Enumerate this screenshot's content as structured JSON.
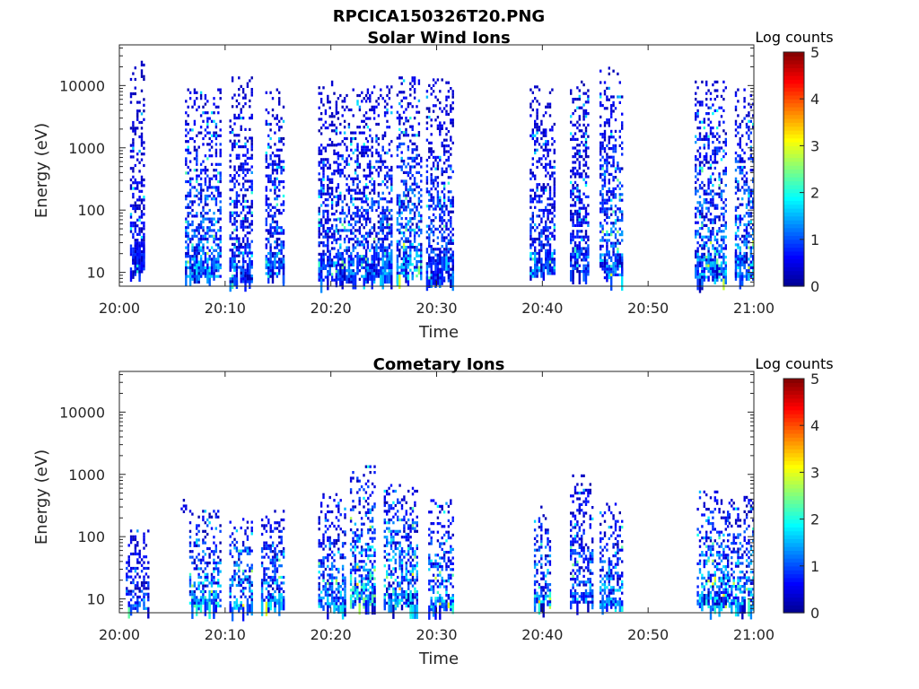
{
  "figure": {
    "filename": "RPCICA150326T20.PNG"
  },
  "palette": {
    "background": "#ffffff",
    "axis": "#262626",
    "colormap": [
      "#00008f",
      "#0000ff",
      "#0080ff",
      "#00ffff",
      "#80ff80",
      "#ffff00",
      "#ff8000",
      "#ff0000",
      "#800000"
    ]
  },
  "chart_data": [
    {
      "type": "heatmap",
      "title": "Solar Wind Ions",
      "xlabel": "Time",
      "ylabel": "Energy (eV)",
      "x_ticks": [
        "20:00",
        "20:10",
        "20:20",
        "20:30",
        "20:40",
        "20:50",
        "21:00"
      ],
      "x_range_minutes": [
        0,
        60
      ],
      "y_scale": "log",
      "y_ticks": [
        "10",
        "100",
        "1000",
        "10000"
      ],
      "ylim": [
        6,
        45000
      ],
      "colorbar": {
        "label": "Log counts",
        "range": [
          0,
          5
        ],
        "ticks": [
          "0",
          "1",
          "2",
          "3",
          "4",
          "5"
        ]
      },
      "minor_ticks": true,
      "grid": false,
      "bursts": [
        {
          "t": [
            1.0,
            2.4
          ],
          "e": [
            10,
            25000
          ],
          "level": 0.7
        },
        {
          "t": [
            6.2,
            9.6
          ],
          "e": [
            8,
            9000
          ],
          "level": 1.4
        },
        {
          "t": [
            10.4,
            12.6
          ],
          "e": [
            7,
            14000
          ],
          "level": 1.0
        },
        {
          "t": [
            13.8,
            15.6
          ],
          "e": [
            8,
            9000
          ],
          "level": 1.2
        },
        {
          "t": [
            18.8,
            20.6
          ],
          "e": [
            7,
            12000
          ],
          "level": 1.0
        },
        {
          "t": [
            20.6,
            23.4
          ],
          "e": [
            7,
            9000
          ],
          "level": 1.2
        },
        {
          "t": [
            23.4,
            25.8
          ],
          "e": [
            8,
            10000
          ],
          "level": 1.3
        },
        {
          "t": [
            26.2,
            28.6
          ],
          "e": [
            8,
            14000
          ],
          "level": 1.6
        },
        {
          "t": [
            29.0,
            31.6
          ],
          "e": [
            7,
            13000
          ],
          "level": 1.1
        },
        {
          "t": [
            38.8,
            41.2
          ],
          "e": [
            9,
            10000
          ],
          "level": 1.0
        },
        {
          "t": [
            42.6,
            44.4
          ],
          "e": [
            10,
            12000
          ],
          "level": 0.9
        },
        {
          "t": [
            45.4,
            47.6
          ],
          "e": [
            8,
            20000
          ],
          "level": 1.4
        },
        {
          "t": [
            54.4,
            57.4
          ],
          "e": [
            7,
            12000
          ],
          "level": 1.5
        },
        {
          "t": [
            58.2,
            60.0
          ],
          "e": [
            8,
            10000
          ],
          "level": 1.6
        }
      ]
    },
    {
      "type": "heatmap",
      "title": "Cometary Ions",
      "xlabel": "Time",
      "ylabel": "Energy (eV)",
      "x_ticks": [
        "20:00",
        "20:10",
        "20:20",
        "20:30",
        "20:40",
        "20:50",
        "21:00"
      ],
      "x_range_minutes": [
        0,
        60
      ],
      "y_scale": "log",
      "y_ticks": [
        "10",
        "100",
        "1000",
        "10000"
      ],
      "ylim": [
        6,
        45000
      ],
      "colorbar": {
        "label": "Log counts",
        "range": [
          0,
          5
        ],
        "ticks": [
          "0",
          "1",
          "2",
          "3",
          "4",
          "5"
        ]
      },
      "minor_ticks": true,
      "grid": false,
      "bursts": [
        {
          "t": [
            0.6,
            2.8
          ],
          "e": [
            7,
            130
          ],
          "level": 1.2
        },
        {
          "t": [
            5.8,
            6.4
          ],
          "e": [
            250,
            450
          ],
          "level": 0.6
        },
        {
          "t": [
            6.6,
            9.6
          ],
          "e": [
            7,
            300
          ],
          "level": 1.9
        },
        {
          "t": [
            10.4,
            12.6
          ],
          "e": [
            7,
            200
          ],
          "level": 1.7
        },
        {
          "t": [
            13.4,
            15.6
          ],
          "e": [
            8,
            300
          ],
          "level": 1.5
        },
        {
          "t": [
            18.8,
            21.4
          ],
          "e": [
            7,
            500
          ],
          "level": 1.6
        },
        {
          "t": [
            21.8,
            24.2
          ],
          "e": [
            8,
            1400
          ],
          "level": 2.2
        },
        {
          "t": [
            25.0,
            28.2
          ],
          "e": [
            7,
            700
          ],
          "level": 2.0
        },
        {
          "t": [
            29.2,
            31.6
          ],
          "e": [
            7,
            400
          ],
          "level": 1.7
        },
        {
          "t": [
            39.2,
            40.8
          ],
          "e": [
            8,
            350
          ],
          "level": 1.8
        },
        {
          "t": [
            42.6,
            44.8
          ],
          "e": [
            8,
            1000
          ],
          "level": 1.3
        },
        {
          "t": [
            45.4,
            47.6
          ],
          "e": [
            7,
            350
          ],
          "level": 1.6
        },
        {
          "t": [
            54.6,
            57.6
          ],
          "e": [
            7,
            550
          ],
          "level": 1.9
        },
        {
          "t": [
            57.6,
            60.0
          ],
          "e": [
            7,
            450
          ],
          "level": 1.8
        }
      ]
    }
  ]
}
